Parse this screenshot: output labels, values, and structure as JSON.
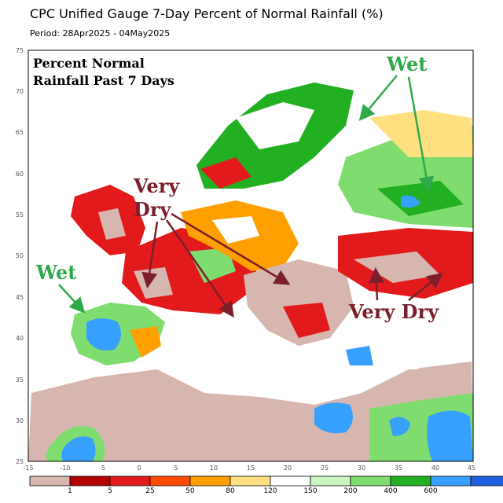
{
  "title": "CPC Unified Gauge 7-Day Percent of Normal Rainfall (%)",
  "period": "Period: 28Apr2025 - 04May2025",
  "inset_label": {
    "line1": "Percent Normal",
    "line2": "Rainfall Past 7 Days"
  },
  "annotations": {
    "wet_ne": "Wet",
    "wet_sw": "Wet",
    "very_dry_w": {
      "line1": "Very",
      "line2": "Dry"
    },
    "very_dry_e": "Very Dry"
  },
  "axes": {
    "lat_ticks": [
      "25",
      "30",
      "35",
      "40",
      "45",
      "50",
      "55",
      "60",
      "65",
      "70",
      "75"
    ],
    "lon_ticks": [
      "-15",
      "-10",
      "-5",
      "0",
      "5",
      "10",
      "15",
      "20",
      "25",
      "30",
      "35",
      "40",
      "45"
    ]
  },
  "legend": {
    "labels": [
      "1",
      "5",
      "25",
      "50",
      "80",
      "120",
      "150",
      "200",
      "400",
      "600"
    ],
    "colors": [
      "#d6b6ae",
      "#b20000",
      "#e31a1c",
      "#ff4b00",
      "#ff9f00",
      "#ffe080",
      "#ffffff",
      "#c8f5c0",
      "#7fdc6e",
      "#22b022",
      "#37a0ff",
      "#1f5fe0"
    ]
  },
  "colors": {
    "annotation_dry": "#7a1f2b",
    "annotation_wet": "#2faa4a"
  }
}
